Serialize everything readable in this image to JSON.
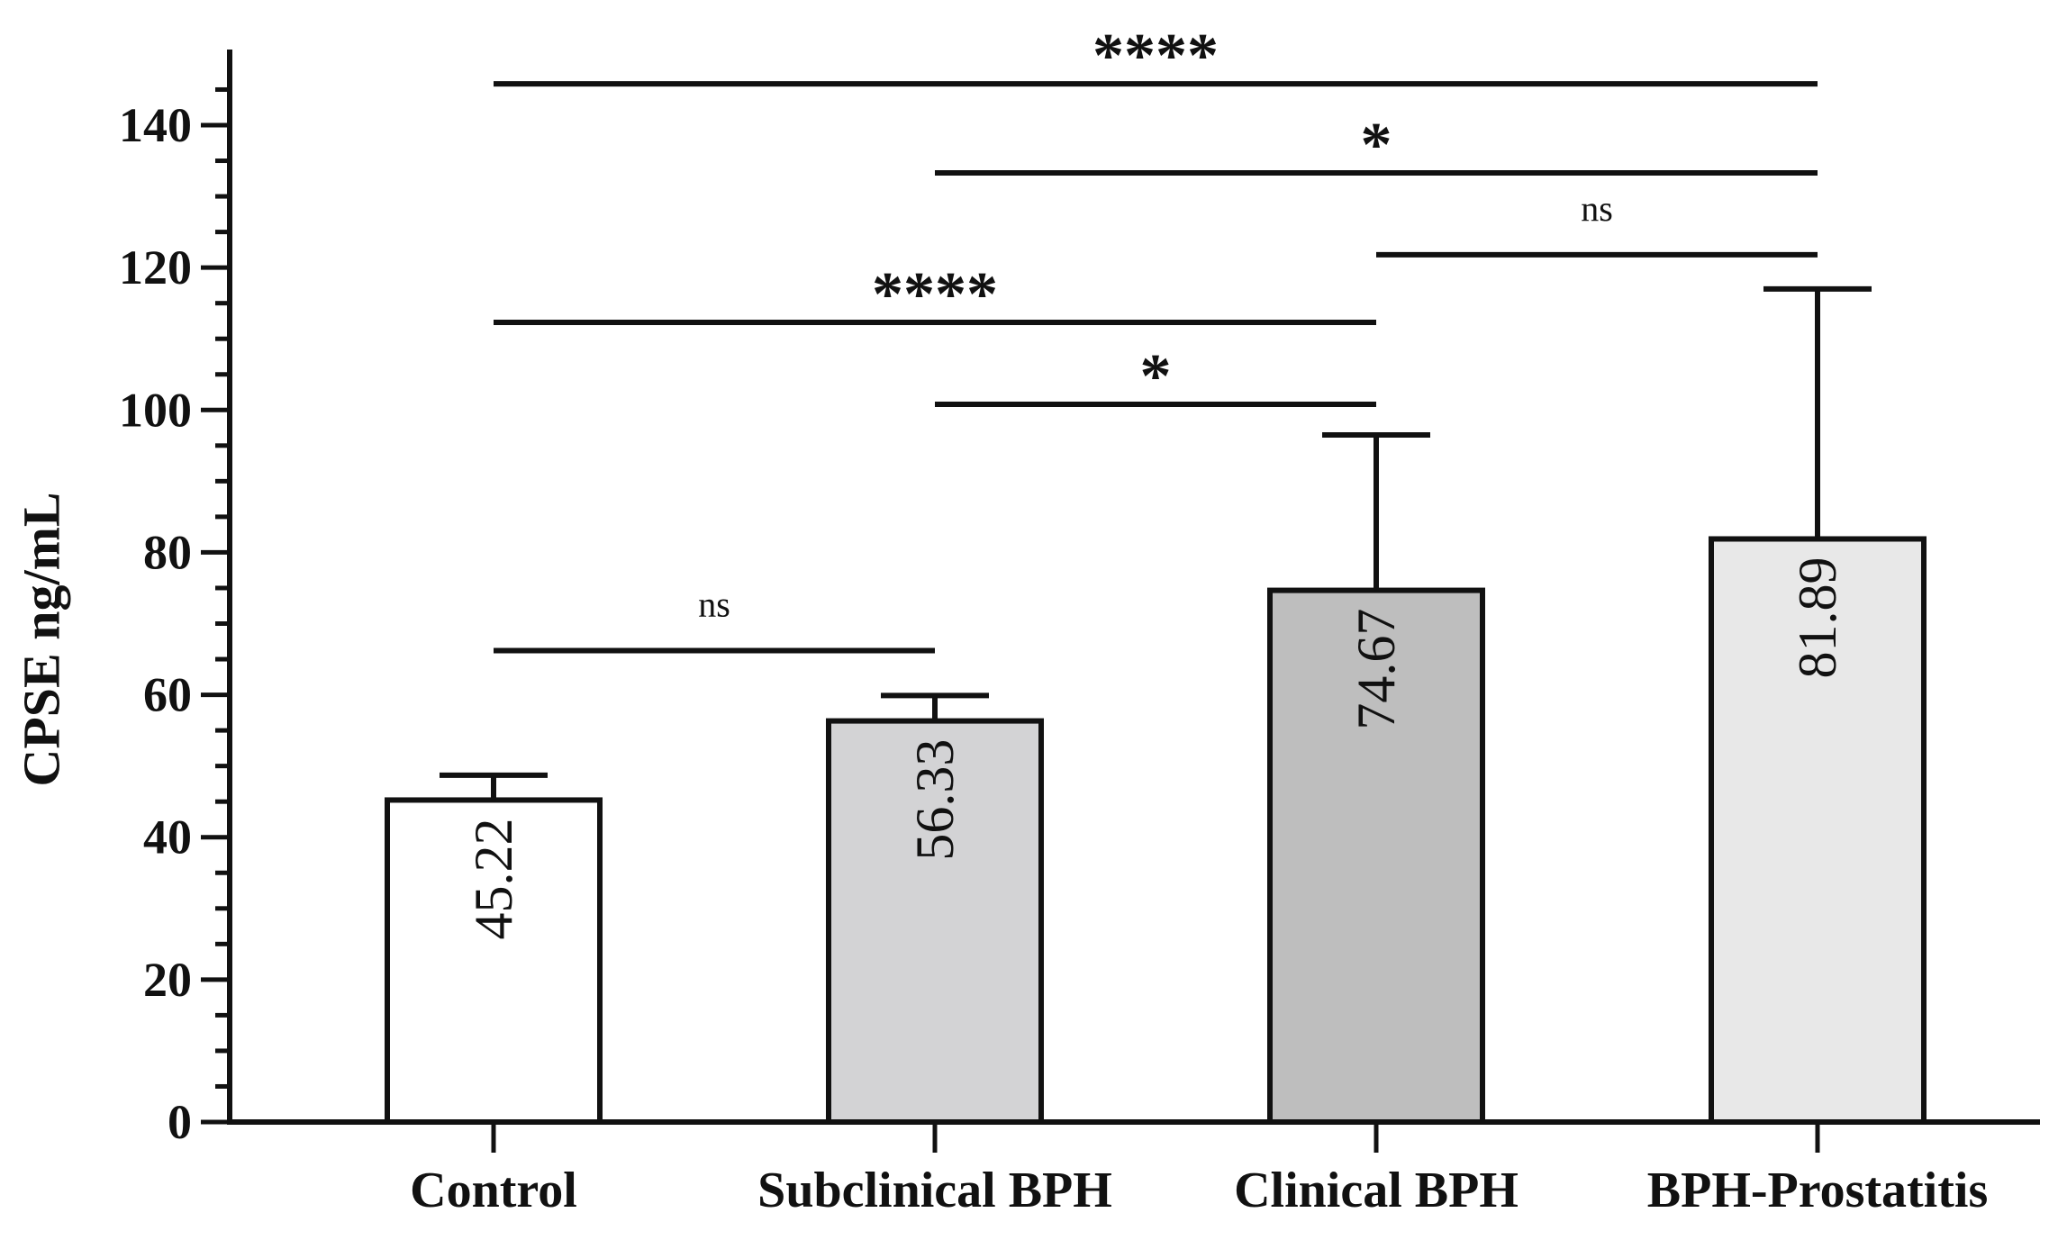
{
  "chart_data": {
    "type": "bar",
    "title": "",
    "xlabel": "",
    "ylabel": "CPSE ng/mL",
    "ylim": [
      0,
      150
    ],
    "yticks": [
      0,
      20,
      40,
      60,
      80,
      100,
      120,
      140
    ],
    "grid": false,
    "categories": [
      "Control",
      "Subclinical BPH",
      "Clinical BPH",
      "BPH-Prostatitis"
    ],
    "values": [
      45.22,
      56.33,
      74.67,
      81.89
    ],
    "value_labels": [
      "45.22",
      "56.33",
      "74.67",
      "81.89"
    ],
    "error_upper": [
      48.7,
      59.9,
      96.5,
      117.0
    ],
    "bar_colors": [
      "#ffffff",
      "#d3d3d5",
      "#bebebe",
      "#e8e8e8"
    ],
    "comparisons": [
      {
        "from": "Control",
        "to": "BPH-Prostatitis",
        "y": 145.8,
        "label": "****"
      },
      {
        "from": "Subclinical BPH",
        "to": "BPH-Prostatitis",
        "y": 133.3,
        "label": "*"
      },
      {
        "from": "Clinical BPH",
        "to": "BPH-Prostatitis",
        "y": 121.8,
        "label": "ns"
      },
      {
        "from": "Control",
        "to": "Clinical BPH",
        "y": 112.3,
        "label": "****"
      },
      {
        "from": "Subclinical BPH",
        "to": "Clinical BPH",
        "y": 100.8,
        "label": "*"
      },
      {
        "from": "Control",
        "to": "Subclinical BPH",
        "y": 66.2,
        "label": "ns"
      }
    ]
  }
}
